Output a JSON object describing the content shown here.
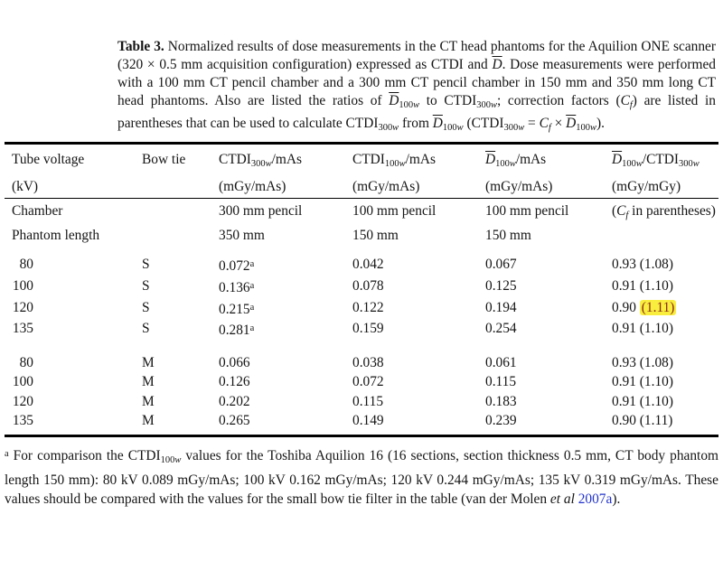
{
  "colors": {
    "background": "#ffffff",
    "text": "#151515",
    "rule": "#000000",
    "highlight_bg": "#f9ee3d",
    "highlight_text": "#8a2a1a",
    "link": "#2233cc"
  },
  "caption": {
    "segments": [
      {
        "text": "Table 3.",
        "bold": true
      },
      {
        "text": " Normalized results of dose measurements in the CT head phantoms for the Aquilion ONE scanner (320 × 0.5 mm acquisition configuration) expressed as CTDI and "
      },
      {
        "text": "D",
        "italic": true,
        "over": true
      },
      {
        "text": ". Dose measurements were performed with a 100 mm CT pencil chamber and a 300 mm CT pencil chamber in 150 mm and 350 mm long CT head phantoms. Also are listed the ratios of "
      },
      {
        "text": "D",
        "italic": true,
        "over": true
      },
      {
        "text": "100",
        "sub": true
      },
      {
        "text": "w",
        "sub": true,
        "italic": true
      },
      {
        "text": " to CTDI"
      },
      {
        "text": "300",
        "sub": true
      },
      {
        "text": "w",
        "sub": true,
        "italic": true
      },
      {
        "text": "; correction factors ("
      },
      {
        "text": "C",
        "italic": true
      },
      {
        "text": "f",
        "sub": true,
        "italic": true
      },
      {
        "text": ") are listed in parentheses that can be used to calculate CTDI"
      },
      {
        "text": "300",
        "sub": true
      },
      {
        "text": "w",
        "sub": true,
        "italic": true
      },
      {
        "text": " from "
      },
      {
        "text": "D",
        "italic": true,
        "over": true
      },
      {
        "text": "100",
        "sub": true
      },
      {
        "text": "w",
        "sub": true,
        "italic": true
      },
      {
        "text": " (CTDI"
      },
      {
        "text": "300",
        "sub": true
      },
      {
        "text": "w",
        "sub": true,
        "italic": true
      },
      {
        "text": " = "
      },
      {
        "text": "C",
        "italic": true
      },
      {
        "text": "f",
        "sub": true,
        "italic": true
      },
      {
        "text": " × "
      },
      {
        "text": "D",
        "italic": true,
        "over": true
      },
      {
        "text": "100",
        "sub": true
      },
      {
        "text": "w",
        "sub": true,
        "italic": true
      },
      {
        "text": ")."
      }
    ]
  },
  "table": {
    "header_rows": [
      [
        "Tube voltage",
        "Bow tie",
        [
          {
            "text": "CTDI"
          },
          {
            "text": "300",
            "sub": true
          },
          {
            "text": "w",
            "sub": true,
            "italic": true
          },
          {
            "text": "/mAs"
          }
        ],
        [
          {
            "text": "CTDI"
          },
          {
            "text": "100",
            "sub": true
          },
          {
            "text": "w",
            "sub": true,
            "italic": true
          },
          {
            "text": "/mAs"
          }
        ],
        [
          {
            "text": "D",
            "italic": true,
            "over": true
          },
          {
            "text": "100",
            "sub": true
          },
          {
            "text": "w",
            "sub": true,
            "italic": true
          },
          {
            "text": "/mAs"
          }
        ],
        [
          {
            "text": "D",
            "italic": true,
            "over": true
          },
          {
            "text": "100",
            "sub": true
          },
          {
            "text": "w",
            "sub": true,
            "italic": true
          },
          {
            "text": "/CTDI"
          },
          {
            "text": "300",
            "sub": true
          },
          {
            "text": "w",
            "sub": true,
            "italic": true
          }
        ]
      ],
      [
        "(kV)",
        "",
        "(mGy/mAs)",
        "(mGy/mAs)",
        "(mGy/mAs)",
        "(mGy/mGy)"
      ]
    ],
    "info_rows": [
      [
        "Chamber",
        "",
        "300 mm pencil",
        "100 mm pencil",
        "100 mm pencil",
        [
          {
            "text": "("
          },
          {
            "text": "C",
            "italic": true
          },
          {
            "text": "f",
            "sub": true,
            "italic": true
          },
          {
            "text": " in parentheses)"
          }
        ]
      ],
      [
        "Phantom length",
        "",
        "350 mm",
        "150 mm",
        "150 mm",
        ""
      ]
    ],
    "groups": [
      {
        "bow_tie": "S",
        "rows": [
          [
            [
              {
                "text": "80",
                "cls": "rnum"
              }
            ],
            "S",
            [
              {
                "text": "0.072"
              },
              {
                "text": "a",
                "sup": true
              }
            ],
            "0.042",
            "0.067",
            "0.93 (1.08)"
          ],
          [
            [
              {
                "text": "100",
                "cls": "rnum"
              }
            ],
            "S",
            [
              {
                "text": "0.136"
              },
              {
                "text": "a",
                "sup": true
              }
            ],
            "0.078",
            "0.125",
            "0.91 (1.10)"
          ],
          [
            [
              {
                "text": "120",
                "cls": "rnum"
              }
            ],
            "S",
            [
              {
                "text": "0.215"
              },
              {
                "text": "a",
                "sup": true
              }
            ],
            "0.122",
            "0.194",
            [
              {
                "text": "0.90 "
              },
              {
                "text": "(1.11)",
                "highlight": true
              }
            ]
          ],
          [
            [
              {
                "text": "135",
                "cls": "rnum"
              }
            ],
            "S",
            [
              {
                "text": "0.281"
              },
              {
                "text": "a",
                "sup": true
              }
            ],
            "0.159",
            "0.254",
            "0.91 (1.10)"
          ]
        ]
      },
      {
        "bow_tie": "M",
        "rows": [
          [
            [
              {
                "text": "80",
                "cls": "rnum"
              }
            ],
            "M",
            "0.066",
            "0.038",
            "0.061",
            "0.93 (1.08)"
          ],
          [
            [
              {
                "text": "100",
                "cls": "rnum"
              }
            ],
            "M",
            "0.126",
            "0.072",
            "0.115",
            "0.91 (1.10)"
          ],
          [
            [
              {
                "text": "120",
                "cls": "rnum"
              }
            ],
            "M",
            "0.202",
            "0.115",
            "0.183",
            "0.91 (1.10)"
          ],
          [
            [
              {
                "text": "135",
                "cls": "rnum"
              }
            ],
            "M",
            "0.265",
            "0.149",
            "0.239",
            "0.90 (1.11)"
          ]
        ]
      }
    ]
  },
  "footnote": {
    "segments": [
      {
        "text": "a",
        "sup": true
      },
      {
        "text": " For comparison the CTDI"
      },
      {
        "text": "100",
        "sub": true
      },
      {
        "text": "w",
        "sub": true,
        "italic": true
      },
      {
        "text": " values for the Toshiba Aquilion 16 (16 sections, section thickness 0.5 mm, CT body phantom length 150 mm): 80 kV 0.089 mGy/mAs; 100 kV 0.162 mGy/mAs; 120 kV 0.244 mGy/mAs; 135 kV 0.319 mGy/mAs. These values should be compared with the values for the small bow tie filter in the table (van der Molen "
      },
      {
        "text": "et al",
        "italic": true
      },
      {
        "text": " "
      },
      {
        "text": "2007a",
        "link": true
      },
      {
        "text": ")."
      }
    ]
  }
}
